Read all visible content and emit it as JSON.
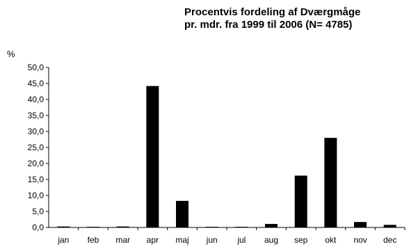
{
  "chart_data": {
    "type": "bar",
    "title_lines": [
      "Procentvis fordeling af Dværgmåge",
      "pr. mdr. fra 1999 til 2006 (N= 4785)"
    ],
    "ylabel": "%",
    "xlabel": "",
    "categories": [
      "jan",
      "feb",
      "mar",
      "apr",
      "maj",
      "jun",
      "jul",
      "aug",
      "sep",
      "okt",
      "nov",
      "dec"
    ],
    "values": [
      0.3,
      0.2,
      0.3,
      44.2,
      8.3,
      0.2,
      0.2,
      1.1,
      16.2,
      28.0,
      1.7,
      0.8
    ],
    "ylim": [
      0,
      50
    ],
    "yticks": [
      "0,0",
      "5,0",
      "10,0",
      "15,0",
      "20,0",
      "25,0",
      "30,0",
      "35,0",
      "40,0",
      "45,0",
      "50,0"
    ],
    "grid": false,
    "bar_color": "#000000"
  }
}
